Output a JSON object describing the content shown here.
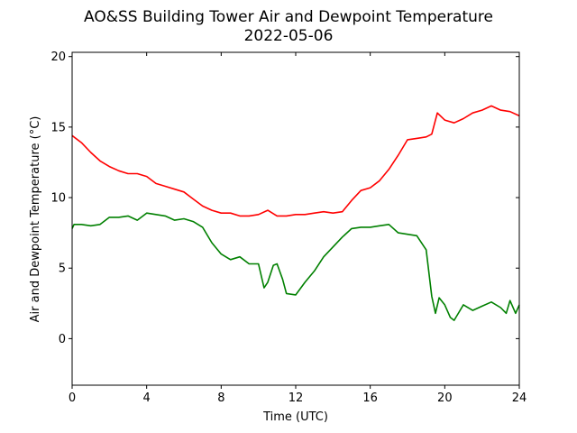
{
  "chart_data": {
    "type": "line",
    "title": "AO&SS Building Tower Air and Dewpoint Temperature",
    "subtitle": "2022-05-06",
    "xlabel": "Time (UTC)",
    "ylabel": "Air and Dewpoint Temperature (°C)",
    "xlim": [
      0,
      24
    ],
    "ylim": [
      -3.3,
      20.3
    ],
    "xticks": [
      0,
      4,
      8,
      12,
      16,
      20,
      24
    ],
    "yticks": [
      0,
      5,
      10,
      15,
      20
    ],
    "grid": false,
    "legend": "none",
    "series": [
      {
        "color": "#ff0000",
        "x": [
          0,
          0.5,
          1,
          1.5,
          2,
          2.5,
          3,
          3.5,
          4,
          4.5,
          5,
          5.5,
          6,
          6.5,
          7,
          7.5,
          8,
          8.5,
          9,
          9.5,
          10,
          10.5,
          11,
          11.5,
          12,
          12.5,
          13,
          13.5,
          14,
          14.5,
          15,
          15.5,
          16,
          16.5,
          17,
          17.5,
          18,
          18.5,
          19,
          19.3,
          19.6,
          20,
          20.5,
          21,
          21.5,
          22,
          22.5,
          23,
          23.5,
          24
        ],
        "y": [
          14.4,
          13.9,
          13.2,
          12.6,
          12.2,
          11.9,
          11.7,
          11.7,
          11.5,
          11.0,
          10.8,
          10.6,
          10.4,
          9.9,
          9.4,
          9.1,
          8.9,
          8.9,
          8.7,
          8.7,
          8.8,
          9.1,
          8.7,
          8.7,
          8.8,
          8.8,
          8.9,
          9.0,
          8.9,
          9.0,
          9.8,
          10.5,
          10.7,
          11.2,
          12.0,
          13.0,
          14.1,
          14.2,
          14.3,
          14.5,
          16.0,
          15.5,
          15.3,
          15.6,
          16.0,
          16.2,
          16.5,
          16.2,
          16.1,
          15.8
        ]
      },
      {
        "color": "#008000",
        "x": [
          0,
          0.1,
          0.5,
          1,
          1.5,
          2,
          2.5,
          3,
          3.5,
          4,
          4.5,
          5,
          5.5,
          6,
          6.5,
          7,
          7.5,
          8,
          8.5,
          9,
          9.5,
          10,
          10.3,
          10.5,
          10.8,
          11,
          11.3,
          11.5,
          12,
          12.5,
          13,
          13.5,
          14,
          14.5,
          15,
          15.5,
          16,
          16.5,
          17,
          17.5,
          18,
          18.5,
          19,
          19.3,
          19.5,
          19.7,
          20,
          20.3,
          20.5,
          21,
          21.5,
          22,
          22.5,
          23,
          23.3,
          23.5,
          23.8,
          24
        ],
        "y": [
          7.8,
          8.1,
          8.1,
          8.0,
          8.1,
          8.6,
          8.6,
          8.7,
          8.4,
          8.9,
          8.8,
          8.7,
          8.4,
          8.5,
          8.3,
          7.9,
          6.8,
          6.0,
          5.6,
          5.8,
          5.3,
          5.3,
          3.6,
          4.0,
          5.2,
          5.3,
          4.2,
          3.2,
          3.1,
          4.0,
          4.8,
          5.8,
          6.5,
          7.2,
          7.8,
          7.9,
          7.9,
          8.0,
          8.1,
          7.5,
          7.4,
          7.3,
          6.3,
          3.0,
          1.8,
          2.9,
          2.4,
          1.5,
          1.3,
          2.4,
          2.0,
          2.3,
          2.6,
          2.2,
          1.8,
          2.7,
          1.8,
          2.4
        ]
      }
    ]
  }
}
